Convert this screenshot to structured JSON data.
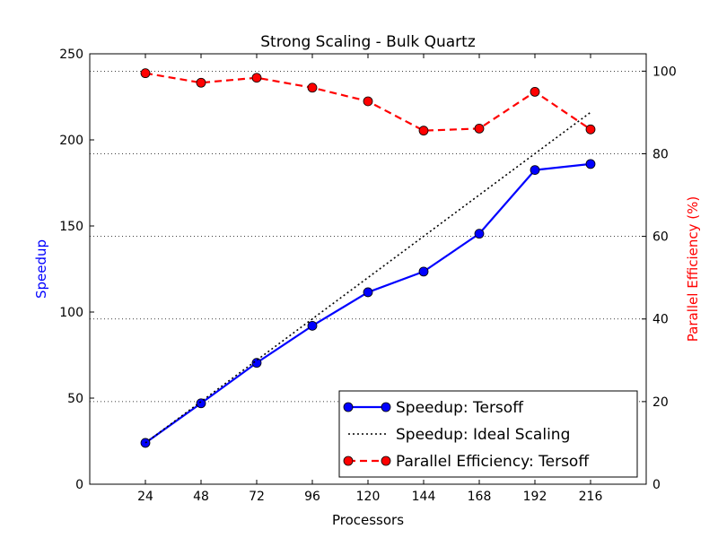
{
  "chart_data": {
    "type": "line",
    "title": "Strong Scaling - Bulk Quartz",
    "xlabel": "Processors",
    "ylabel_left": "Speedup",
    "ylabel_right": "Parallel Efficiency (%)",
    "x": [
      24,
      48,
      72,
      96,
      120,
      144,
      168,
      192,
      216
    ],
    "xlim": [
      0,
      240
    ],
    "ylim_left": [
      0,
      250
    ],
    "ylim_right": [
      0,
      104.2
    ],
    "yticks_left": [
      0,
      50,
      100,
      150,
      200,
      250
    ],
    "yticks_right": [
      0,
      20,
      40,
      60,
      80,
      100
    ],
    "grid": "horizontal dotted at right-axis ticks",
    "legend_position": "lower-right",
    "series": [
      {
        "name": "Speedup: Tersoff",
        "axis": "left",
        "color": "#0000ff",
        "line_style": "solid",
        "marker": "circle",
        "values": [
          24,
          47,
          70.5,
          92,
          111.5,
          123.5,
          145.5,
          182.5,
          186
        ]
      },
      {
        "name": "Speedup: Ideal Scaling",
        "axis": "left",
        "color": "#000000",
        "line_style": "dotted",
        "marker": "none",
        "values": [
          24,
          48,
          72,
          96,
          120,
          144,
          168,
          192,
          216
        ]
      },
      {
        "name": "Parallel Efficiency: Tersoff",
        "axis": "right",
        "color": "#ff0000",
        "line_style": "dashed",
        "marker": "circle",
        "values": [
          99.5,
          97.2,
          98.4,
          96.0,
          92.7,
          85.6,
          86.1,
          95.0,
          85.9
        ]
      }
    ]
  }
}
